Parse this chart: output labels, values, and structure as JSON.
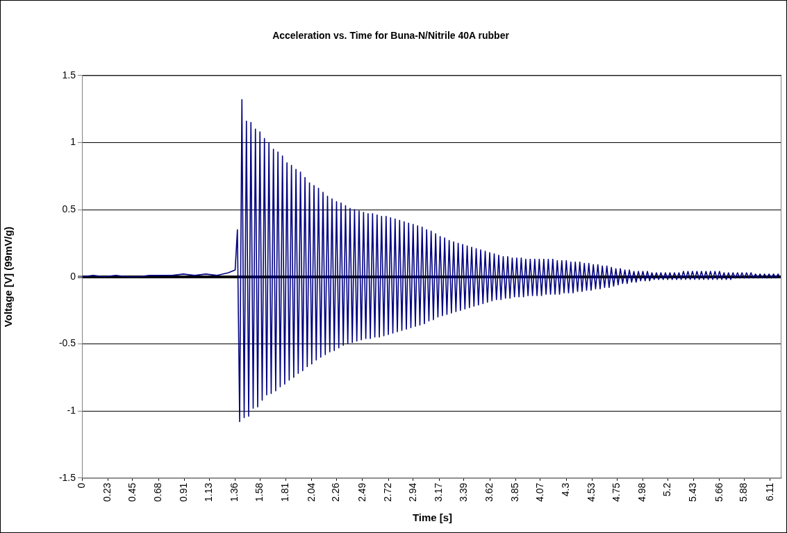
{
  "chart_data": {
    "type": "line",
    "title": "Acceleration vs. Time for Buna-N/Nitrile 40A rubber",
    "xlabel": "Time [s]",
    "ylabel": "Voltage [V] (99mV/g)",
    "xlim": [
      0,
      6.21
    ],
    "xticks": [
      0,
      0.23,
      0.45,
      0.68,
      0.91,
      1.13,
      1.36,
      1.58,
      1.81,
      2.04,
      2.26,
      2.49,
      2.72,
      2.94,
      3.17,
      3.39,
      3.62,
      3.85,
      4.07,
      4.3,
      4.53,
      4.75,
      4.98,
      5.2,
      5.43,
      5.66,
      5.88,
      6.11
    ],
    "ylim": [
      -1.5,
      1.5
    ],
    "yticks": [
      -1.5,
      -1,
      -0.5,
      0,
      0.5,
      1,
      1.5
    ],
    "grid": "y",
    "series": [
      {
        "color": "#000080",
        "x": [
          0,
          0.1,
          0.2,
          0.3,
          0.4,
          0.5,
          0.6,
          0.7,
          0.8,
          0.9,
          1.0,
          1.1,
          1.2,
          1.3,
          1.36,
          1.38,
          1.4,
          1.42,
          1.44,
          1.46,
          1.48,
          1.5,
          1.52,
          1.54,
          1.56,
          1.58,
          1.6,
          1.62,
          1.64,
          1.66,
          1.68,
          1.7,
          1.72,
          1.74,
          1.76,
          1.78,
          1.8,
          1.82,
          1.84,
          1.86,
          1.88,
          1.9,
          1.92,
          1.94,
          1.96,
          1.98,
          2.0,
          2.02,
          2.04,
          2.06,
          2.08,
          2.1,
          2.12,
          2.14,
          2.16,
          2.18,
          2.2,
          2.22,
          2.24,
          2.26,
          2.28,
          2.3,
          2.32,
          2.34,
          2.36,
          2.38,
          2.4,
          2.42,
          2.44,
          2.46,
          2.48,
          2.5,
          2.52,
          2.54,
          2.56,
          2.58,
          2.6,
          2.62,
          2.64,
          2.66,
          2.68,
          2.7,
          2.72,
          2.74,
          2.76,
          2.78,
          2.8,
          2.82,
          2.84,
          2.86,
          2.88,
          2.9,
          2.92,
          2.94,
          2.96,
          2.98,
          3.0,
          3.02,
          3.04,
          3.06,
          3.08,
          3.1,
          3.12,
          3.14,
          3.16,
          3.18,
          3.2,
          3.22,
          3.24,
          3.26,
          3.28,
          3.3,
          3.32,
          3.34,
          3.36,
          3.38,
          3.4,
          3.42,
          3.44,
          3.46,
          3.48,
          3.5,
          3.52,
          3.54,
          3.56,
          3.58,
          3.6,
          3.62,
          3.64,
          3.66,
          3.68,
          3.7,
          3.72,
          3.74,
          3.76,
          3.78,
          3.8,
          3.82,
          3.84,
          3.86,
          3.88,
          3.9,
          3.92,
          3.94,
          3.96,
          3.98,
          4.0,
          4.02,
          4.04,
          4.06,
          4.08,
          4.1,
          4.12,
          4.14,
          4.16,
          4.18,
          4.2,
          4.22,
          4.24,
          4.26,
          4.28,
          4.3,
          4.32,
          4.34,
          4.36,
          4.38,
          4.4,
          4.42,
          4.44,
          4.46,
          4.48,
          4.5,
          4.52,
          4.54,
          4.56,
          4.58,
          4.6,
          4.62,
          4.64,
          4.66,
          4.68,
          4.7,
          4.72,
          4.74,
          4.76,
          4.78,
          4.8,
          4.82,
          4.84,
          4.86,
          4.88,
          4.9,
          4.92,
          4.94,
          4.96,
          4.98,
          5.0,
          5.02,
          5.04,
          5.06,
          5.08,
          5.1,
          5.12,
          5.14,
          5.16,
          5.18,
          5.2,
          5.22,
          5.24,
          5.26,
          5.28,
          5.3,
          5.32,
          5.34,
          5.36,
          5.38,
          5.4,
          5.42,
          5.44,
          5.46,
          5.48,
          5.5,
          5.52,
          5.54,
          5.56,
          5.58,
          5.6,
          5.62,
          5.64,
          5.66,
          5.68,
          5.7,
          5.72,
          5.74,
          5.76,
          5.78,
          5.8,
          5.82,
          5.84,
          5.86,
          5.88,
          5.9,
          5.92,
          5.94,
          5.96,
          5.98,
          6.0,
          6.02,
          6.04,
          6.06,
          6.08,
          6.1,
          6.12,
          6.14,
          6.16,
          6.18,
          6.2
        ],
        "values": [
          0,
          0.01,
          0,
          0.01,
          0,
          0,
          0.01,
          0.01,
          0.01,
          0.02,
          0.01,
          0.02,
          0.01,
          0.03,
          0.05,
          0.35,
          -1.08,
          1.32,
          -1.05,
          1.16,
          -1.04,
          1.15,
          -0.98,
          1.1,
          -0.97,
          1.08,
          -0.92,
          1.03,
          -0.88,
          1.0,
          -0.87,
          0.95,
          -0.85,
          0.93,
          -0.82,
          0.9,
          -0.8,
          0.85,
          -0.77,
          0.83,
          -0.75,
          0.8,
          -0.72,
          0.78,
          -0.7,
          0.74,
          -0.67,
          0.7,
          -0.65,
          0.68,
          -0.62,
          0.66,
          -0.6,
          0.63,
          -0.58,
          0.6,
          -0.56,
          0.58,
          -0.55,
          0.56,
          -0.53,
          0.55,
          -0.51,
          0.53,
          -0.5,
          0.51,
          -0.49,
          0.5,
          -0.48,
          0.49,
          -0.47,
          0.48,
          -0.46,
          0.47,
          -0.46,
          0.47,
          -0.45,
          0.46,
          -0.45,
          0.45,
          -0.44,
          0.45,
          -0.43,
          0.44,
          -0.42,
          0.43,
          -0.41,
          0.42,
          -0.4,
          0.41,
          -0.39,
          0.4,
          -0.38,
          0.39,
          -0.37,
          0.38,
          -0.36,
          0.37,
          -0.35,
          0.35,
          -0.33,
          0.34,
          -0.32,
          0.32,
          -0.3,
          0.3,
          -0.29,
          0.29,
          -0.28,
          0.27,
          -0.27,
          0.26,
          -0.26,
          0.25,
          -0.25,
          0.24,
          -0.24,
          0.23,
          -0.23,
          0.22,
          -0.22,
          0.21,
          -0.21,
          0.2,
          -0.2,
          0.19,
          -0.19,
          0.18,
          -0.18,
          0.17,
          -0.17,
          0.16,
          -0.17,
          0.15,
          -0.16,
          0.15,
          -0.16,
          0.14,
          -0.15,
          0.14,
          -0.15,
          0.14,
          -0.15,
          0.13,
          -0.14,
          0.13,
          -0.14,
          0.13,
          -0.14,
          0.13,
          -0.14,
          0.13,
          -0.13,
          0.13,
          -0.13,
          0.13,
          -0.13,
          0.12,
          -0.13,
          0.12,
          -0.12,
          0.12,
          -0.12,
          0.11,
          -0.12,
          0.11,
          -0.11,
          0.11,
          -0.11,
          0.1,
          -0.1,
          0.1,
          -0.1,
          0.09,
          -0.09,
          0.09,
          -0.09,
          0.08,
          -0.08,
          0.08,
          -0.08,
          0.07,
          -0.07,
          0.06,
          -0.06,
          0.06,
          -0.05,
          0.05,
          -0.05,
          0.05,
          -0.04,
          0.04,
          -0.04,
          0.04,
          -0.03,
          0.04,
          -0.03,
          0.04,
          -0.03,
          0.03,
          -0.02,
          0.03,
          -0.02,
          0.03,
          -0.02,
          0.03,
          -0.02,
          0.03,
          -0.02,
          0.03,
          -0.02,
          0.03,
          -0.02,
          0.04,
          -0.02,
          0.04,
          -0.02,
          0.04,
          -0.02,
          0.04,
          -0.02,
          0.04,
          -0.02,
          0.04,
          -0.02,
          0.04,
          -0.02,
          0.04,
          -0.02,
          0.04,
          -0.02,
          0.03,
          -0.02,
          0.03,
          -0.02,
          0.03,
          -0.01,
          0.03,
          -0.01,
          0.03,
          -0.01,
          0.03,
          -0.01,
          0.03,
          -0.01,
          0.02,
          -0.01,
          0.02,
          -0.01,
          0.02,
          -0.01,
          0.02,
          -0.01,
          0.02,
          -0.01,
          0.02,
          -0.01
        ]
      }
    ]
  }
}
